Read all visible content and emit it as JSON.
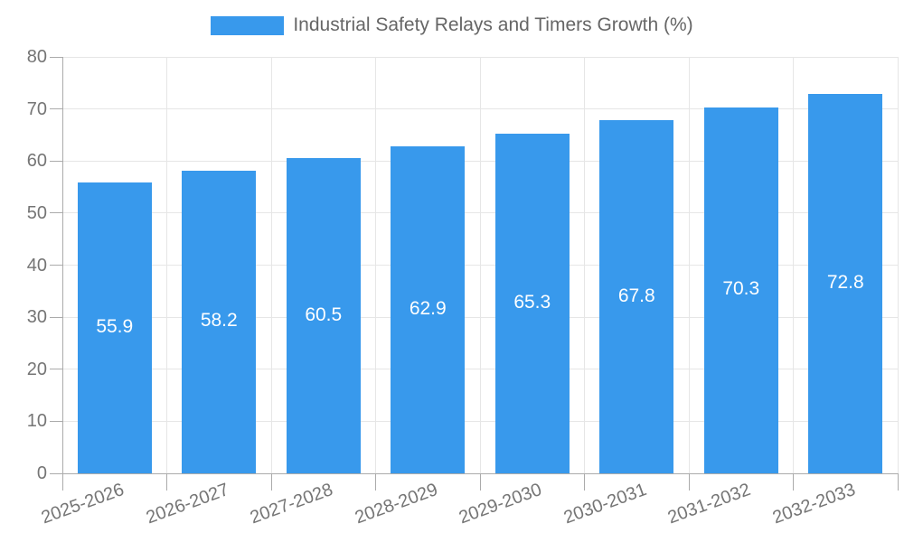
{
  "chart_data": {
    "type": "bar",
    "title": "Industrial Safety Relays and Timers Growth (%)",
    "categories": [
      "2025-2026",
      "2026-2027",
      "2027-2028",
      "2028-2029",
      "2029-2030",
      "2030-2031",
      "2031-2032",
      "2032-2033"
    ],
    "values": [
      55.9,
      58.2,
      60.5,
      62.9,
      65.3,
      67.8,
      70.3,
      72.8
    ],
    "data_labels": [
      "55.9",
      "58.2",
      "60.5",
      "62.9",
      "65.3",
      "67.8",
      "70.3",
      "72.8"
    ],
    "ytick_labels": [
      "0",
      "10",
      "20",
      "30",
      "40",
      "50",
      "60",
      "70",
      "80"
    ],
    "xlabel": "",
    "ylabel": "",
    "ylim": [
      0,
      80
    ],
    "ytick_step": 10,
    "grid": true,
    "legend_position": "top",
    "x_label_rotation_deg": -20
  },
  "colors": {
    "bar": "#3899EC",
    "grid": "#E6E6E6",
    "axis": "#ABABAB",
    "tick_label": "#757575",
    "title": "#666666",
    "data_label": "#FFFFFF",
    "background": "#FFFFFF"
  }
}
